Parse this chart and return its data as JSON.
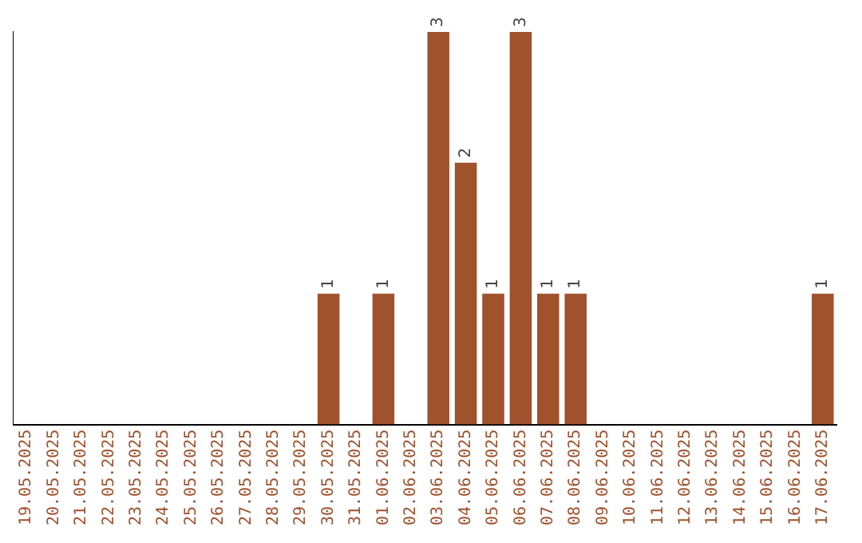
{
  "chart_data": {
    "type": "bar",
    "categories": [
      "19.05.2025",
      "20.05.2025",
      "21.05.2025",
      "22.05.2025",
      "23.05.2025",
      "24.05.2025",
      "25.05.2025",
      "26.05.2025",
      "27.05.2025",
      "28.05.2025",
      "29.05.2025",
      "30.05.2025",
      "31.05.2025",
      "01.06.2025",
      "02.06.2025",
      "03.06.2025",
      "04.06.2025",
      "05.06.2025",
      "06.06.2025",
      "07.06.2025",
      "08.06.2025",
      "09.06.2025",
      "10.06.2025",
      "11.06.2025",
      "12.06.2025",
      "13.06.2025",
      "14.06.2025",
      "15.06.2025",
      "16.06.2025",
      "17.06.2025"
    ],
    "values": [
      0,
      0,
      0,
      0,
      0,
      0,
      0,
      0,
      0,
      0,
      0,
      1,
      0,
      1,
      0,
      3,
      2,
      1,
      3,
      1,
      1,
      0,
      0,
      0,
      0,
      0,
      0,
      0,
      0,
      1
    ],
    "value_labels": [
      null,
      null,
      null,
      null,
      null,
      null,
      null,
      null,
      null,
      null,
      null,
      "1",
      null,
      "1",
      null,
      "3",
      "2",
      "1",
      "3",
      "1",
      "1",
      null,
      null,
      null,
      null,
      null,
      null,
      null,
      null,
      "1"
    ],
    "color": "#a0522d",
    "grid": false,
    "legend": false,
    "tick_labels": "x"
  }
}
